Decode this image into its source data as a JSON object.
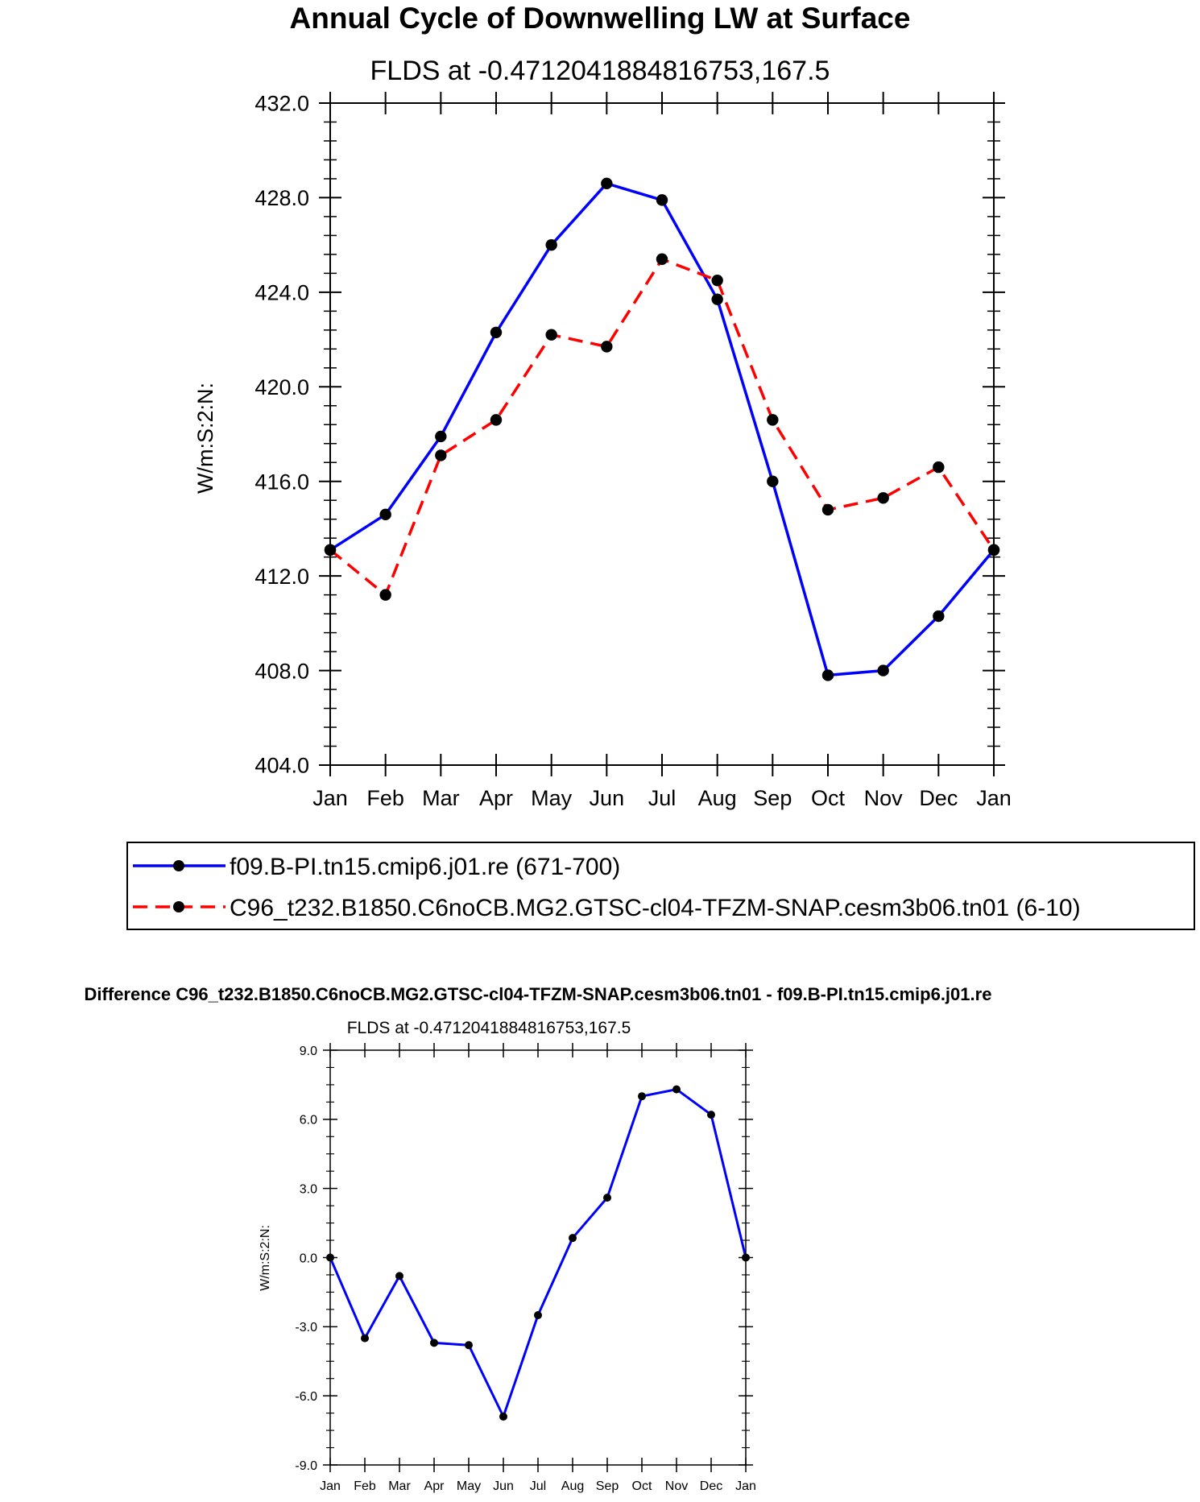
{
  "chart_data": [
    {
      "type": "line",
      "title": "Annual Cycle of Downwelling LW at Surface",
      "subtitle": "FLDS at -0.4712041884816753,167.5",
      "ylabel": "W/m:S:2:N:",
      "xlabel": "",
      "categories": [
        "Jan",
        "Feb",
        "Mar",
        "Apr",
        "May",
        "Jun",
        "Jul",
        "Aug",
        "Sep",
        "Oct",
        "Nov",
        "Dec",
        "Jan"
      ],
      "ylim": [
        404,
        432
      ],
      "ytick_values": [
        404,
        408,
        412,
        416,
        420,
        424,
        428,
        432
      ],
      "ytick_labels": [
        "404.0",
        "408.0",
        "412.0",
        "416.0",
        "420.0",
        "424.0",
        "428.0",
        "432.0"
      ],
      "series": [
        {
          "name": "f09.B-PI.tn15.cmip6.j01.re (671-700)",
          "color": "#0000ff",
          "style": "solid",
          "values": [
            413.1,
            414.6,
            417.9,
            422.3,
            426.0,
            428.6,
            427.9,
            423.7,
            416.0,
            407.8,
            408.0,
            410.3,
            413.1
          ]
        },
        {
          "name": "C96_t232.B1850.C6noCB.MG2.GTSC-cl04-TFZM-SNAP.cesm3b06.tn01 (6-10)",
          "color": "#ff0000",
          "style": "dashed",
          "values": [
            413.1,
            411.2,
            417.1,
            418.6,
            422.2,
            421.7,
            425.4,
            424.5,
            418.6,
            414.8,
            415.3,
            416.6,
            413.1
          ]
        }
      ],
      "legend": "bottom"
    },
    {
      "type": "line",
      "title": "Difference C96_t232.B1850.C6noCB.MG2.GTSC-cl04-TFZM-SNAP.cesm3b06.tn01 - f09.B-PI.tn15.cmip6.j01.re",
      "subtitle": "FLDS at -0.4712041884816753,167.5",
      "ylabel": "W/m:S:2:N:",
      "xlabel": "",
      "categories": [
        "Jan",
        "Feb",
        "Mar",
        "Apr",
        "May",
        "Jun",
        "Jul",
        "Aug",
        "Sep",
        "Oct",
        "Nov",
        "Dec",
        "Jan"
      ],
      "ylim": [
        -9,
        9
      ],
      "ytick_values": [
        -9,
        -6,
        -3,
        0,
        3,
        6,
        9
      ],
      "ytick_labels": [
        "-9.0",
        "-6.0",
        "-3.0",
        "0.0",
        "3.0",
        "6.0",
        "9.0"
      ],
      "series": [
        {
          "name": "Difference",
          "color": "#0000ff",
          "style": "solid",
          "values": [
            0.0,
            -3.5,
            -0.8,
            -3.7,
            -3.8,
            -6.9,
            -2.5,
            0.85,
            2.6,
            7.0,
            7.3,
            6.2,
            0.0
          ]
        }
      ]
    }
  ]
}
